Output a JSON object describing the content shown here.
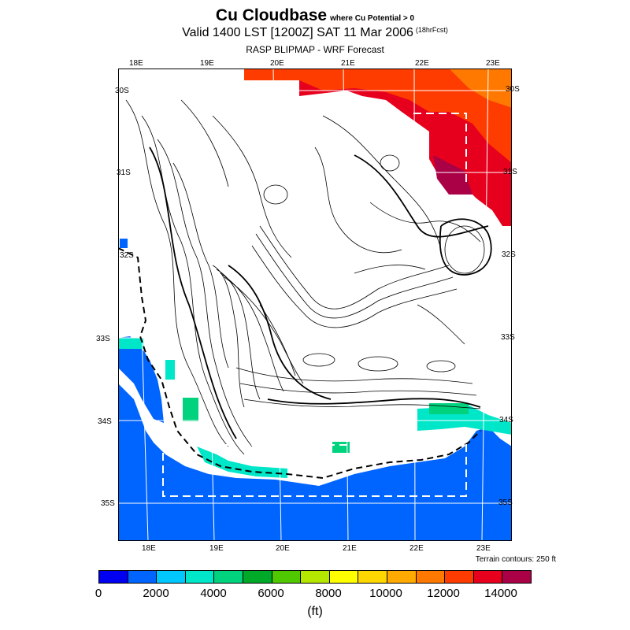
{
  "title": {
    "main": "Cu Cloudbase",
    "qualifier": "where Cu Potential > 0",
    "valid": "Valid 1400 LST [1200Z] SAT 11 Mar 2006",
    "forecast_hours": "(18hrFcst)",
    "source": "RASP BLIPMAP - WRF Forecast"
  },
  "map": {
    "top_lon_labels": [
      "18E",
      "19E",
      "20E",
      "21E",
      "22E",
      "23E"
    ],
    "bottom_lon_labels": [
      "18E",
      "19E",
      "20E",
      "21E",
      "22E",
      "23E"
    ],
    "left_lat_labels": [
      "30S",
      "31S",
      "32S",
      "33S",
      "34S",
      "35S"
    ],
    "right_lat_labels": [
      "30S",
      "31S",
      "32S",
      "33S",
      "34S",
      "35S"
    ],
    "terrain_note": "Terrain contours: 250 ft"
  },
  "colorbar": {
    "colors": [
      "#0000f0",
      "#0064ff",
      "#00c8ff",
      "#00e6c8",
      "#00d27d",
      "#00aa28",
      "#50c800",
      "#b4e600",
      "#ffff00",
      "#ffd700",
      "#ffaa00",
      "#ff7800",
      "#ff3c00",
      "#e6001e",
      "#aa0046"
    ],
    "tick_labels": [
      "0",
      "2000",
      "4000",
      "6000",
      "8000",
      "10000",
      "12000",
      "14000"
    ],
    "unit": "(ft)"
  }
}
